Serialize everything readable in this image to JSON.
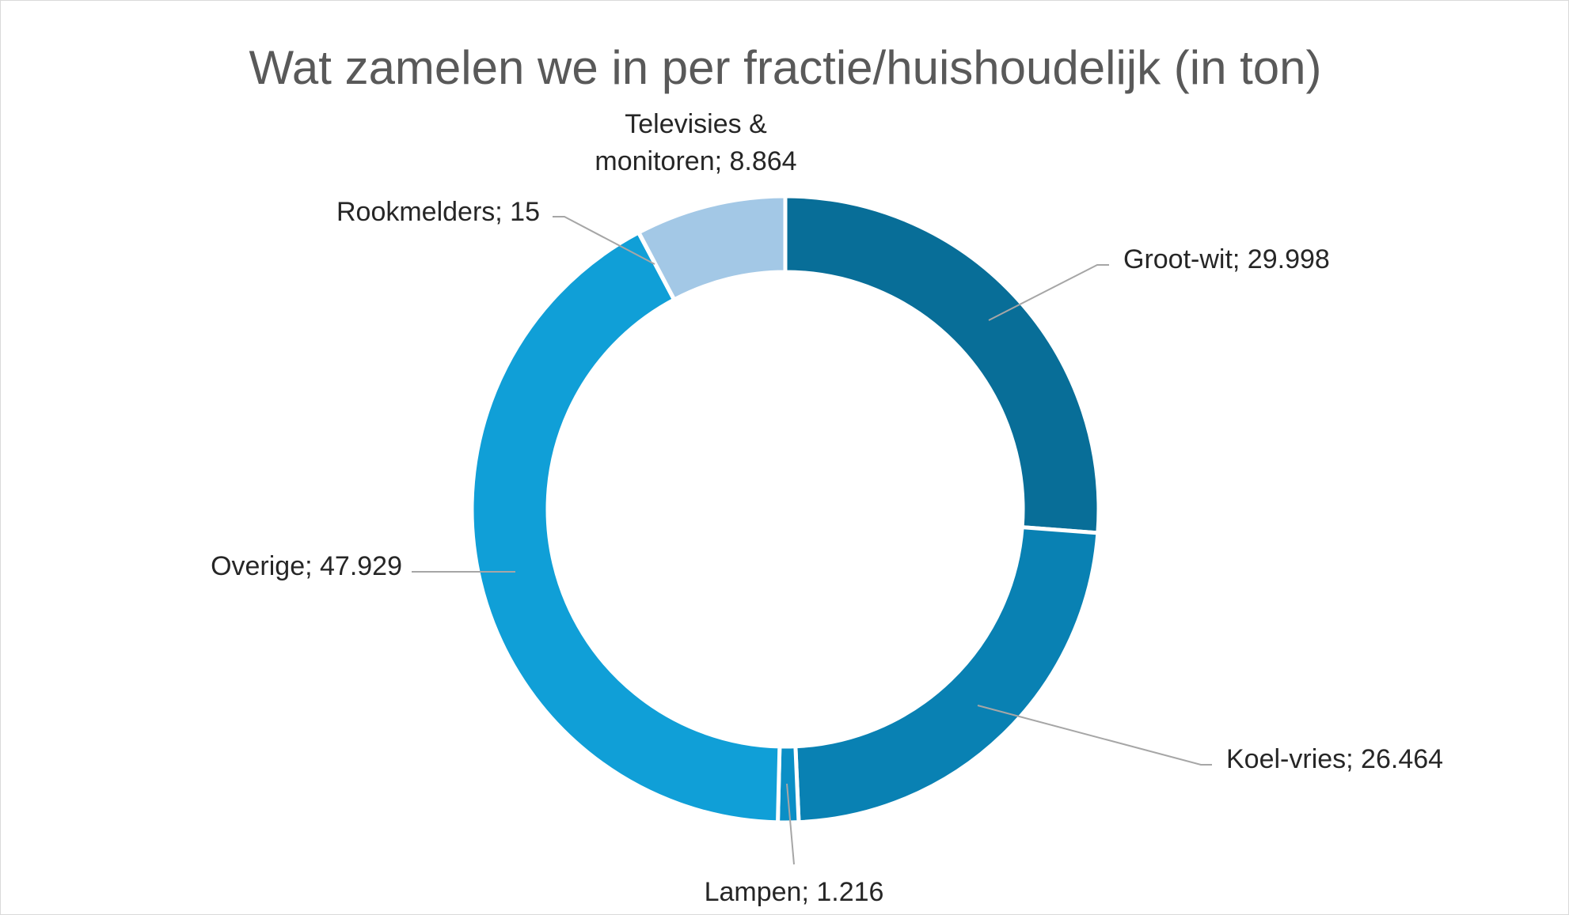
{
  "chart_data": {
    "type": "pie",
    "variant": "doughnut",
    "title": "Wat zamelen we in per fractie/huishoudelijk (in ton)",
    "label_separator": "; ",
    "slices": [
      {
        "label": "Groot-wit",
        "value": 29998,
        "value_label": "29.998",
        "color": "#086e98"
      },
      {
        "label": "Koel-vries",
        "value": 26464,
        "value_label": "26.464",
        "color": "#0981b3"
      },
      {
        "label": "Lampen",
        "value": 1216,
        "value_label": "1.216",
        "color": "#0b8fc6"
      },
      {
        "label": "Overige",
        "value": 47929,
        "value_label": "47.929",
        "color": "#109fd7"
      },
      {
        "label": "Rookmelders",
        "value": 15,
        "value_label": "15",
        "color": "#36aee4"
      },
      {
        "label": "Televisies & monitoren",
        "label_lines": [
          "Televisies &",
          "monitoren; 8.864"
        ],
        "value": 8864,
        "value_label": "8.864",
        "color": "#a3c8e6"
      }
    ],
    "legend": "none"
  }
}
